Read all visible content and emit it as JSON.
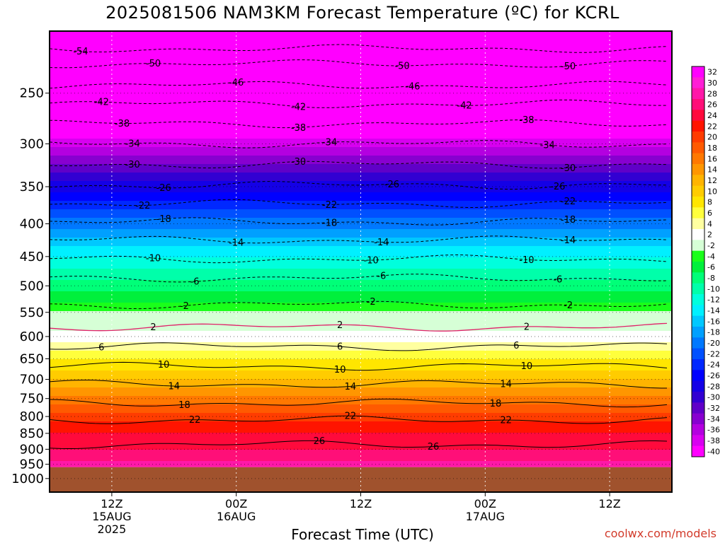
{
  "title": "2025081506 NAM3KM Forecast Temperature (ºC) for KCRL",
  "credit": "coolwx.com/models",
  "chart_data": {
    "type": "heatmap",
    "title": "2025081506 NAM3KM Forecast Temperature (ºC) for KCRL",
    "xlabel": "Forecast Time (UTC)",
    "ylabel": "",
    "x_range_hours": [
      0,
      60
    ],
    "y_scale": "log-pressure",
    "y_range_hPa": [
      1050,
      200
    ],
    "yticks": [
      250,
      300,
      350,
      400,
      450,
      500,
      550,
      600,
      650,
      700,
      750,
      800,
      850,
      900,
      950,
      1000
    ],
    "xticks": [
      {
        "hour": 6,
        "lines": [
          "12Z",
          "15AUG",
          "2025"
        ]
      },
      {
        "hour": 18,
        "lines": [
          "00Z",
          "16AUG"
        ]
      },
      {
        "hour": 30,
        "lines": [
          "12Z"
        ]
      },
      {
        "hour": 42,
        "lines": [
          "00Z",
          "17AUG"
        ]
      },
      {
        "hour": 54,
        "lines": [
          "12Z"
        ]
      }
    ],
    "surface_pressure_hPa": 960,
    "profile": [
      {
        "p": 200,
        "t": -56
      },
      {
        "p": 230,
        "t": -52
      },
      {
        "p": 260,
        "t": -44
      },
      {
        "p": 300,
        "t": -37
      },
      {
        "p": 350,
        "t": -27
      },
      {
        "p": 400,
        "t": -19
      },
      {
        "p": 450,
        "t": -12
      },
      {
        "p": 500,
        "t": -7
      },
      {
        "p": 550,
        "t": -2
      },
      {
        "p": 600,
        "t": 3
      },
      {
        "p": 650,
        "t": 8
      },
      {
        "p": 700,
        "t": 12
      },
      {
        "p": 750,
        "t": 17
      },
      {
        "p": 800,
        "t": 21
      },
      {
        "p": 850,
        "t": 24
      },
      {
        "p": 900,
        "t": 26
      },
      {
        "p": 960,
        "t": 29
      }
    ],
    "contours": [
      {
        "t": -54,
        "p": 213,
        "labels": [
          {
            "h": 3,
            "text": "-54"
          }
        ]
      },
      {
        "t": -50,
        "p": 225,
        "labels": [
          {
            "h": 10,
            "text": "-50"
          },
          {
            "h": 34,
            "text": "-50"
          },
          {
            "h": 50,
            "text": "-50"
          }
        ]
      },
      {
        "t": -46,
        "p": 243,
        "labels": [
          {
            "h": 18,
            "text": "-46"
          },
          {
            "h": 35,
            "text": "-46"
          }
        ]
      },
      {
        "t": -42,
        "p": 260,
        "labels": [
          {
            "h": 5,
            "text": "-42"
          },
          {
            "h": 24,
            "text": "-42"
          },
          {
            "h": 40,
            "text": "-42"
          }
        ]
      },
      {
        "t": -38,
        "p": 279,
        "labels": [
          {
            "h": 7,
            "text": "-38"
          },
          {
            "h": 24,
            "text": "-38"
          },
          {
            "h": 46,
            "text": "-38"
          }
        ]
      },
      {
        "t": -34,
        "p": 300,
        "labels": [
          {
            "h": 8,
            "text": "-34"
          },
          {
            "h": 27,
            "text": "-34"
          },
          {
            "h": 48,
            "text": "-34"
          }
        ]
      },
      {
        "t": -30,
        "p": 323,
        "labels": [
          {
            "h": 8,
            "text": "-30"
          },
          {
            "h": 24,
            "text": "-30"
          },
          {
            "h": 50,
            "text": "-30"
          }
        ]
      },
      {
        "t": -26,
        "p": 348,
        "labels": [
          {
            "h": 11,
            "text": "-26"
          },
          {
            "h": 33,
            "text": "-26"
          },
          {
            "h": 49,
            "text": "-26"
          }
        ]
      },
      {
        "t": -22,
        "p": 372,
        "labels": [
          {
            "h": 9,
            "text": "-22"
          },
          {
            "h": 27,
            "text": "-22"
          },
          {
            "h": 50,
            "text": "-22"
          }
        ]
      },
      {
        "t": -18,
        "p": 397,
        "labels": [
          {
            "h": 11,
            "text": "-18"
          },
          {
            "h": 27,
            "text": "-18"
          },
          {
            "h": 50,
            "text": "-18"
          }
        ]
      },
      {
        "t": -14,
        "p": 424,
        "labels": [
          {
            "h": 18,
            "text": "-14"
          },
          {
            "h": 32,
            "text": "-14"
          },
          {
            "h": 50,
            "text": "-14"
          }
        ]
      },
      {
        "t": -10,
        "p": 454,
        "labels": [
          {
            "h": 10,
            "text": "-10"
          },
          {
            "h": 31,
            "text": "-10"
          },
          {
            "h": 46,
            "text": "-10"
          }
        ]
      },
      {
        "t": -6,
        "p": 486,
        "labels": [
          {
            "h": 14,
            "text": "-6"
          },
          {
            "h": 32,
            "text": "-6"
          },
          {
            "h": 49,
            "text": "-6"
          }
        ]
      },
      {
        "t": -2,
        "p": 535,
        "labels": [
          {
            "h": 13,
            "text": "-2"
          },
          {
            "h": 31,
            "text": "-2"
          },
          {
            "h": 50,
            "text": "-2"
          }
        ]
      },
      {
        "t": 2,
        "p": 580,
        "labels": [
          {
            "h": 10,
            "text": "2"
          },
          {
            "h": 28,
            "text": "2"
          },
          {
            "h": 46,
            "text": "2"
          }
        ]
      },
      {
        "t": 6,
        "p": 622,
        "labels": [
          {
            "h": 5,
            "text": "6"
          },
          {
            "h": 28,
            "text": "6"
          },
          {
            "h": 45,
            "text": "6"
          }
        ]
      },
      {
        "t": 10,
        "p": 668,
        "labels": [
          {
            "h": 11,
            "text": "10"
          },
          {
            "h": 28,
            "text": "10"
          },
          {
            "h": 46,
            "text": "10"
          }
        ]
      },
      {
        "t": 14,
        "p": 712,
        "labels": [
          {
            "h": 12,
            "text": "14"
          },
          {
            "h": 29,
            "text": "14"
          },
          {
            "h": 44,
            "text": "14"
          }
        ]
      },
      {
        "t": 18,
        "p": 762,
        "labels": [
          {
            "h": 13,
            "text": "18"
          },
          {
            "h": 43,
            "text": "18"
          }
        ]
      },
      {
        "t": 22,
        "p": 810,
        "labels": [
          {
            "h": 14,
            "text": "22"
          },
          {
            "h": 29,
            "text": "22"
          },
          {
            "h": 44,
            "text": "22"
          }
        ]
      },
      {
        "t": 26,
        "p": 885,
        "labels": [
          {
            "h": 26,
            "text": "26"
          },
          {
            "h": 37,
            "text": "26"
          }
        ]
      }
    ],
    "colorbar": {
      "labels": [
        "32",
        "30",
        "28",
        "26",
        "24",
        "22",
        "20",
        "18",
        "16",
        "14",
        "12",
        "10",
        "8",
        "6",
        "4",
        "2",
        "-2",
        "-4",
        "-6",
        "-8",
        "-10",
        "-12",
        "-14",
        "-16",
        "-18",
        "-20",
        "-22",
        "-24",
        "-26",
        "-28",
        "-30",
        "-32",
        "-34",
        "-36",
        "-38",
        "-40"
      ],
      "colors": [
        "#ff00ff",
        "#ff1fd6",
        "#ff18a8",
        "#ff0f78",
        "#ff0a3c",
        "#ff1400",
        "#ff3c00",
        "#ff5a00",
        "#ff7800",
        "#ff9600",
        "#ffb400",
        "#ffcc00",
        "#ffe600",
        "#ffff3c",
        "#ffffa0",
        "#ffffff",
        "#d6ffd6",
        "#1aff1a",
        "#00f03c",
        "#00ff78",
        "#00ffaa",
        "#00ffdd",
        "#00f0ff",
        "#00c8ff",
        "#00a0ff",
        "#0078ff",
        "#0050ff",
        "#0028ff",
        "#0000ff",
        "#1400e6",
        "#3200d2",
        "#6000c8",
        "#8800d0",
        "#b400e0",
        "#d800f0",
        "#ff00ff"
      ]
    },
    "grid": true
  }
}
